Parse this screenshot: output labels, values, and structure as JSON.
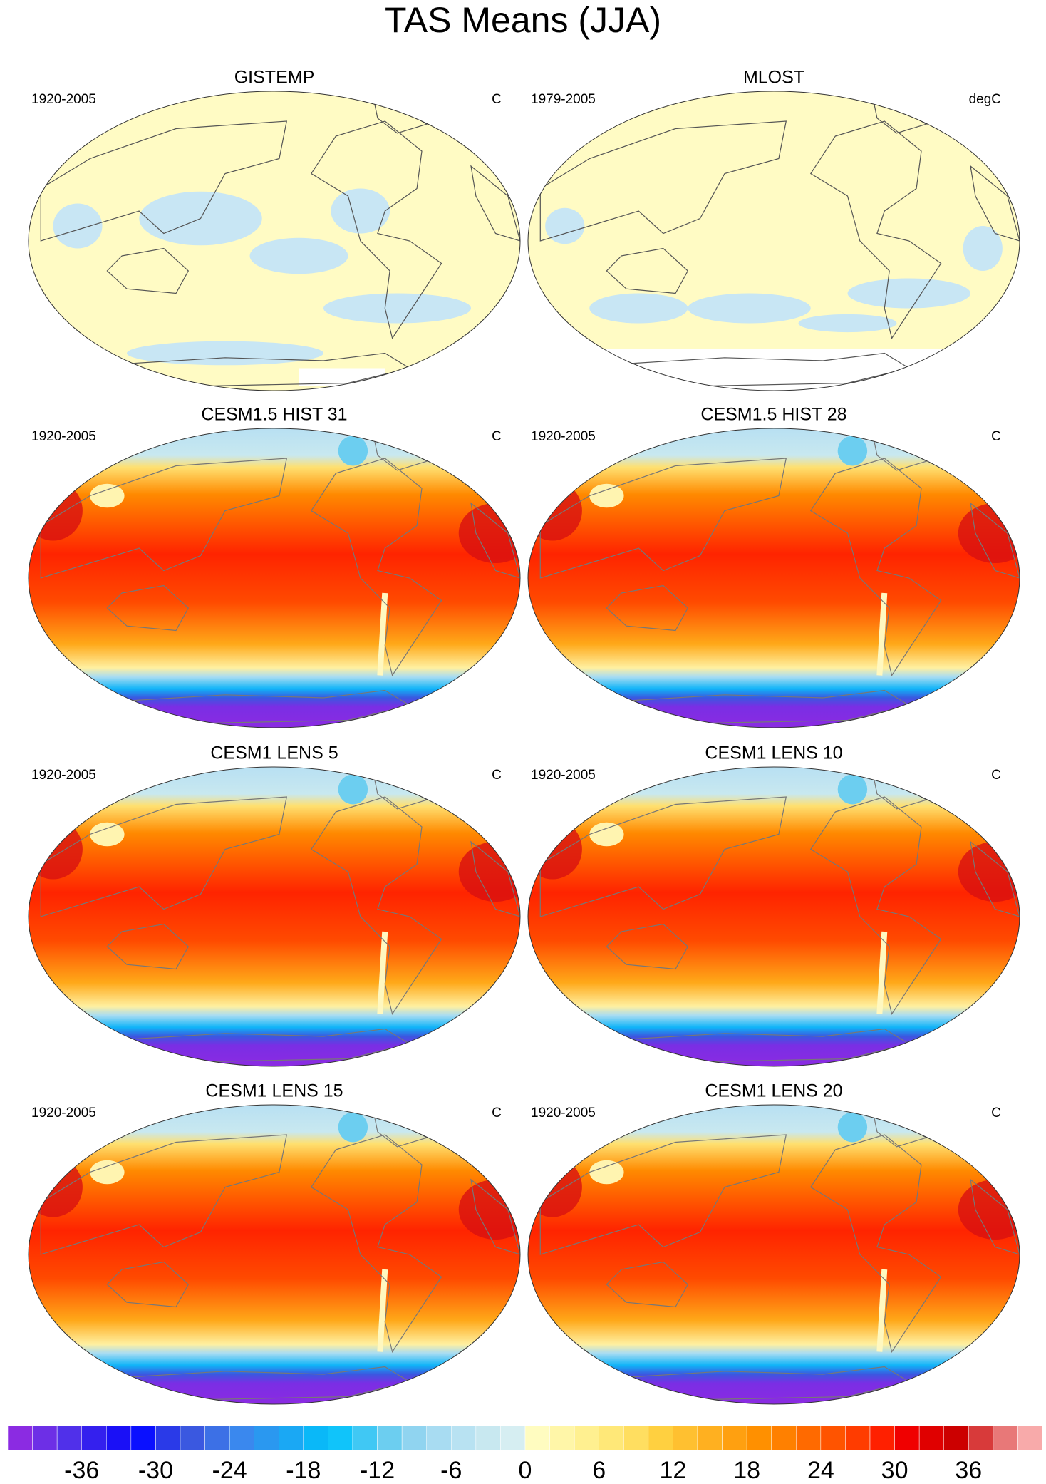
{
  "title": "TAS Means (JJA)",
  "panels": [
    {
      "title": "GISTEMP",
      "period": "1920-2005",
      "units": "C"
    },
    {
      "title": "MLOST",
      "period": "1979-2005",
      "units": "degC"
    },
    {
      "title": "CESM1.5 HIST 31",
      "period": "1920-2005",
      "units": "C"
    },
    {
      "title": "CESM1.5 HIST 28",
      "period": "1920-2005",
      "units": "C"
    },
    {
      "title": "CESM1 LENS 5",
      "period": "1920-2005",
      "units": "C"
    },
    {
      "title": "CESM1 LENS 10",
      "period": "1920-2005",
      "units": "C"
    },
    {
      "title": "CESM1 LENS 15",
      "period": "1920-2005",
      "units": "C"
    },
    {
      "title": "CESM1 LENS 20",
      "period": "1920-2005",
      "units": "C"
    }
  ],
  "colorbar": {
    "lim": [
      -42,
      42
    ],
    "ticks": [
      -36,
      -30,
      -24,
      -18,
      -12,
      -6,
      0,
      6,
      12,
      18,
      24,
      30,
      36
    ],
    "colors": [
      "#8b2be2",
      "#6d2fe6",
      "#5030ea",
      "#3420ee",
      "#1a10f6",
      "#0a10ff",
      "#2a3ae8",
      "#3a58e0",
      "#3c70e6",
      "#3a88ee",
      "#2a98f0",
      "#1aa8f4",
      "#0ab8f8",
      "#10c4fa",
      "#40c8f4",
      "#6ccef0",
      "#90d4f0",
      "#a8dcf2",
      "#b8e2f2",
      "#c8e8f0",
      "#d6eef2",
      "#fffcc0",
      "#fff6a8",
      "#fff090",
      "#ffe878",
      "#ffde60",
      "#ffd040",
      "#ffc030",
      "#ffb020",
      "#ffa010",
      "#ff9000",
      "#ff8000",
      "#ff6a00",
      "#ff5400",
      "#ff3c00",
      "#ff2000",
      "#f00000",
      "#e00000",
      "#cc0000",
      "#d83a3a",
      "#e87878",
      "#f8aaaa"
    ]
  }
}
